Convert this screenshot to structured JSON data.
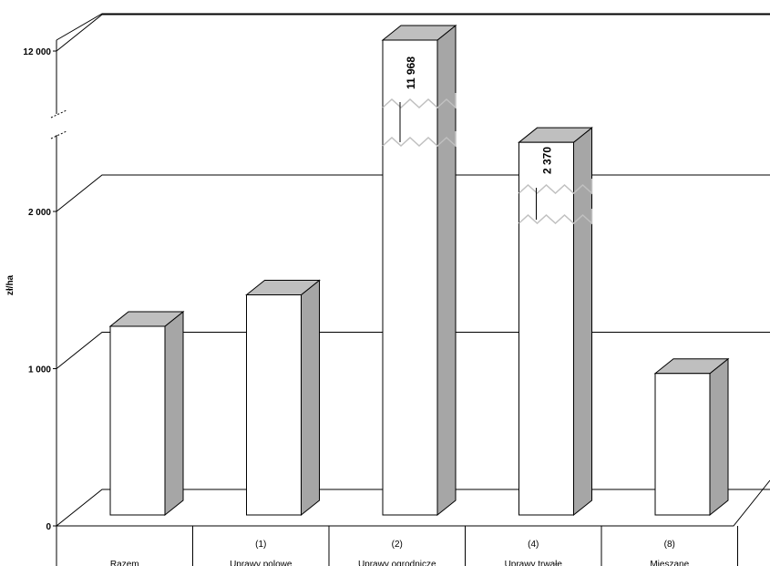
{
  "chart_data": {
    "type": "bar",
    "ylabel": "zł/ha",
    "y_ticks": [
      {
        "label": "0",
        "value": 0
      },
      {
        "label": "1 000",
        "value": 1000
      },
      {
        "label": "2 000",
        "value": 2000
      },
      {
        "label": "12 000",
        "value": 12000
      }
    ],
    "axis_break": {
      "from": 2500,
      "to": 11500
    },
    "categories": [
      {
        "code": "",
        "name": "Razem"
      },
      {
        "code": "(1)",
        "name": "Uprawy polowe"
      },
      {
        "code": "(2)",
        "name": "Uprawy ogrodnicze"
      },
      {
        "code": "(4)",
        "name": "Uprawy trwałe"
      },
      {
        "code": "(8)",
        "name": "Mieszane"
      }
    ],
    "values": [
      1200,
      1400,
      11968,
      2370,
      900
    ],
    "data_labels": [
      "",
      "",
      "11 968",
      "2 370",
      ""
    ],
    "colors": {
      "bar_front": "#ffffff",
      "bar_side": "#a6a6a6",
      "bar_top": "#bfbfbf",
      "lines": "#000000"
    }
  }
}
